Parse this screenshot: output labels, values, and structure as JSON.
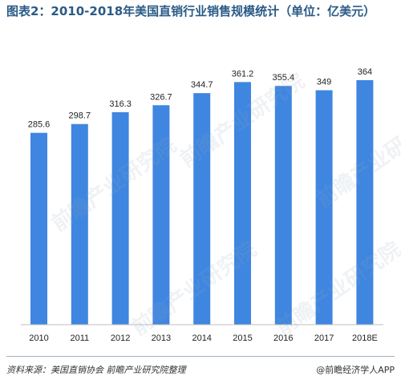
{
  "title": "图表2：2010-2018年美国直销行业销售规模统计（单位：亿美元）",
  "source": "资料来源：美国直销协会 前瞻产业研究院整理",
  "brand": "@前瞻经济学人APP",
  "watermark": "前瞻产业研究院",
  "colors": {
    "bar": "#3f86e0",
    "title": "#2a5b86",
    "text": "#222222",
    "axis": "#bfbfbf"
  },
  "chart_data": {
    "type": "bar",
    "categories": [
      "2010",
      "2011",
      "2012",
      "2013",
      "2014",
      "2015",
      "2016",
      "2017",
      "2018E"
    ],
    "values": [
      285.6,
      298.7,
      316.3,
      326.7,
      344.7,
      361.2,
      355.4,
      349,
      364
    ],
    "data_labels": [
      "285.6",
      "298.7",
      "316.3",
      "326.7",
      "344.7",
      "361.2",
      "355.4",
      "349",
      "364"
    ],
    "ylim": [
      0,
      400
    ],
    "grid": false,
    "legend": "none"
  }
}
